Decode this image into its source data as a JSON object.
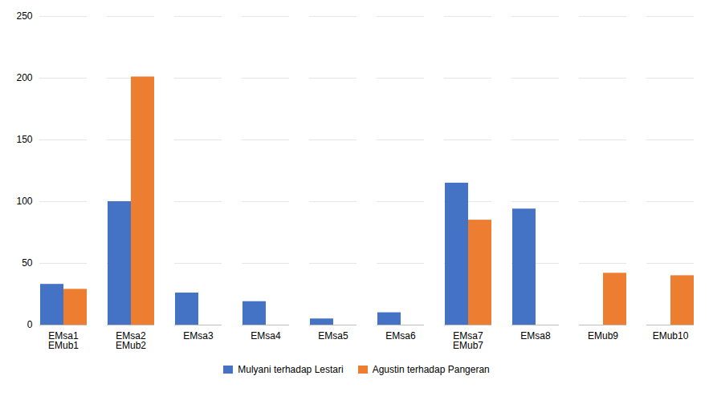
{
  "chart_data": {
    "type": "bar",
    "categories": [
      "EMsa1\nEMub1",
      "EMsa2\nEMub2",
      "EMsa3",
      "EMsa4",
      "EMsa5",
      "EMsa6",
      "EMsa7\nEMub7",
      "EMsa8",
      "EMub9",
      "EMub10"
    ],
    "series": [
      {
        "name": "Mulyani terhadap Lestari",
        "color": "#4472C4",
        "values": [
          33,
          100,
          26,
          19,
          5,
          10,
          115,
          94,
          0,
          0
        ]
      },
      {
        "name": "Agustin terhadap Pangeran",
        "color": "#ED7D31",
        "values": [
          29,
          201,
          0,
          0,
          0,
          0,
          85,
          0,
          42,
          40
        ]
      }
    ],
    "ylim": [
      0,
      250
    ],
    "yticks": [
      0,
      50,
      100,
      150,
      200,
      250
    ],
    "grid": true,
    "legend": "bottom"
  }
}
